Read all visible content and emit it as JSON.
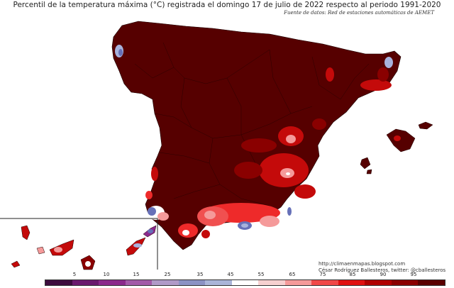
{
  "title": "Percentil de la temperatura máxima (°C) registrada el domingo 17 de julio de 2022 respecto al periodo 1991-2020",
  "source": "Fuente de datos: Red de estaciones automáticas de AEMET",
  "credits": {
    "url": "http://climaenmapas.blogspot.com",
    "author": "César Rodríguez Ballesteros, twitter: @cballesteros"
  },
  "legend": {
    "ticks": [
      "5",
      "10",
      "15",
      "25",
      "35",
      "45",
      "55",
      "65",
      "75",
      "85",
      "90",
      "95"
    ],
    "colors": [
      "#3d0c3e",
      "#6a1a6e",
      "#8c2a8c",
      "#a35aa8",
      "#b09ac8",
      "#8c92c4",
      "#aab4d8",
      "#ffffff",
      "#f6d0d0",
      "#f59a9a",
      "#f04848",
      "#e01010",
      "#b00000",
      "#8a0000",
      "#5a0000"
    ]
  },
  "map_colors": {
    "p95": "#560000",
    "p90": "#8a0000",
    "p85": "#c40a0a",
    "p75": "#ee2a2a",
    "p65": "#f59a9a",
    "p55": "#ffffff",
    "p45": "#a8b2dc",
    "p35": "#6670b8",
    "border": "#1a0000"
  }
}
